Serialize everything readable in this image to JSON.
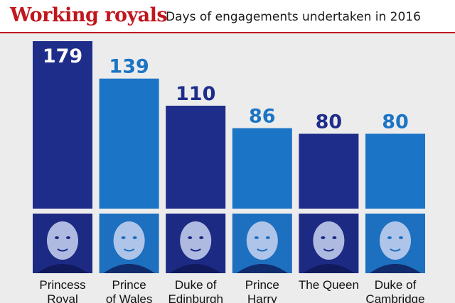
{
  "header": {
    "title": "Working royals",
    "subtitle": "Days of engagements undertaken in 2016"
  },
  "colors": {
    "title": "#c0171d",
    "rule": "#c0171d",
    "panel_bg": "#ececec",
    "bar_dark": "#1f2d8a",
    "bar_light": "#1b74c5",
    "label_dark": "#1f2d8a",
    "label_light": "#1b74c5",
    "label_on_bar": "#ffffff",
    "photo_dark": "#1c2a84",
    "photo_light": "#1d6fbf"
  },
  "chart_data": {
    "type": "bar",
    "title": "Working royals",
    "subtitle": "Days of engagements undertaken in 2016",
    "categories": [
      [
        "Princess",
        "Royal"
      ],
      [
        "Prince",
        "of Wales"
      ],
      [
        "Duke of",
        "Edinburgh"
      ],
      [
        "Prince",
        "Harry"
      ],
      [
        "The Queen"
      ],
      [
        "Duke of",
        "Cambridge"
      ]
    ],
    "values": [
      179,
      139,
      110,
      86,
      80,
      80
    ],
    "bar_shade": [
      "dark",
      "light",
      "dark",
      "light",
      "dark",
      "light"
    ],
    "ylim": [
      0,
      179
    ],
    "grid": false,
    "legend": "none",
    "photos": [
      {
        "name": "portrait-princess-royal",
        "shade": "dark"
      },
      {
        "name": "portrait-prince-of-wales",
        "shade": "light"
      },
      {
        "name": "portrait-duke-of-edinburgh",
        "shade": "dark"
      },
      {
        "name": "portrait-prince-harry",
        "shade": "light"
      },
      {
        "name": "portrait-the-queen",
        "shade": "dark"
      },
      {
        "name": "portrait-duke-of-cambridge",
        "shade": "light"
      }
    ]
  }
}
